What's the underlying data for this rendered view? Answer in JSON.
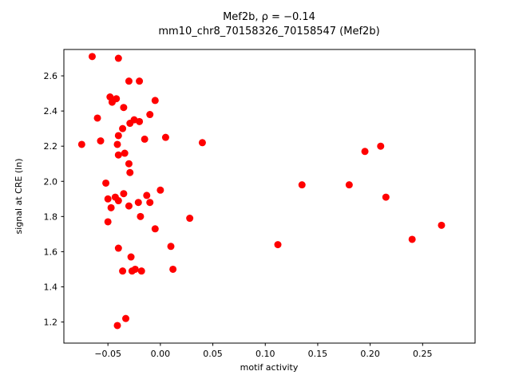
{
  "figure": {
    "title_line1": "Mef2b, ρ = −0.14",
    "title_line2": "mm10_chr8_70158326_70158547 (Mef2b)"
  },
  "chart_data": {
    "type": "scatter",
    "title": "Mef2b, ρ = −0.14",
    "subtitle": "mm10_chr8_70158326_70158547 (Mef2b)",
    "xlabel": "motif activity",
    "ylabel": "signal at CRE (ln)",
    "xlim": [
      -0.092,
      0.3
    ],
    "ylim": [
      1.08,
      2.75
    ],
    "xticks": [
      -0.05,
      0.0,
      0.05,
      0.1,
      0.15,
      0.2,
      0.25
    ],
    "yticks": [
      1.2,
      1.4,
      1.6,
      1.8,
      2.0,
      2.2,
      2.4,
      2.6
    ],
    "grid": false,
    "legend": "none",
    "marker_color": "#ff0000",
    "marker_radius": 4.5,
    "points": [
      [
        -0.075,
        2.21
      ],
      [
        -0.065,
        2.71
      ],
      [
        -0.06,
        2.36
      ],
      [
        -0.057,
        2.23
      ],
      [
        -0.052,
        1.99
      ],
      [
        -0.048,
        2.48
      ],
      [
        -0.046,
        2.45
      ],
      [
        -0.05,
        1.9
      ],
      [
        -0.047,
        1.85
      ],
      [
        -0.05,
        1.77
      ],
      [
        -0.04,
        2.7
      ],
      [
        -0.042,
        2.47
      ],
      [
        -0.04,
        2.26
      ],
      [
        -0.041,
        2.21
      ],
      [
        -0.04,
        2.15
      ],
      [
        -0.043,
        1.91
      ],
      [
        -0.04,
        1.89
      ],
      [
        -0.04,
        1.62
      ],
      [
        -0.041,
        1.18
      ],
      [
        -0.035,
        2.42
      ],
      [
        -0.036,
        2.3
      ],
      [
        -0.034,
        2.16
      ],
      [
        -0.035,
        1.93
      ],
      [
        -0.036,
        1.49
      ],
      [
        -0.033,
        1.22
      ],
      [
        -0.03,
        2.57
      ],
      [
        -0.029,
        2.33
      ],
      [
        -0.03,
        2.1
      ],
      [
        -0.029,
        2.05
      ],
      [
        -0.03,
        1.86
      ],
      [
        -0.028,
        1.57
      ],
      [
        -0.027,
        1.49
      ],
      [
        -0.025,
        2.35
      ],
      [
        -0.024,
        1.5
      ],
      [
        -0.02,
        2.57
      ],
      [
        -0.02,
        2.34
      ],
      [
        -0.021,
        1.88
      ],
      [
        -0.019,
        1.8
      ],
      [
        -0.018,
        1.49
      ],
      [
        -0.015,
        2.24
      ],
      [
        -0.013,
        1.92
      ],
      [
        -0.01,
        2.38
      ],
      [
        -0.01,
        1.88
      ],
      [
        -0.005,
        2.46
      ],
      [
        -0.005,
        1.73
      ],
      [
        0.0,
        1.95
      ],
      [
        0.005,
        2.25
      ],
      [
        0.01,
        1.63
      ],
      [
        0.012,
        1.5
      ],
      [
        0.028,
        1.79
      ],
      [
        0.04,
        2.22
      ],
      [
        0.112,
        1.64
      ],
      [
        0.135,
        1.98
      ],
      [
        0.18,
        1.98
      ],
      [
        0.195,
        2.17
      ],
      [
        0.21,
        2.2
      ],
      [
        0.215,
        1.91
      ],
      [
        0.24,
        1.67
      ],
      [
        0.268,
        1.75
      ]
    ]
  }
}
